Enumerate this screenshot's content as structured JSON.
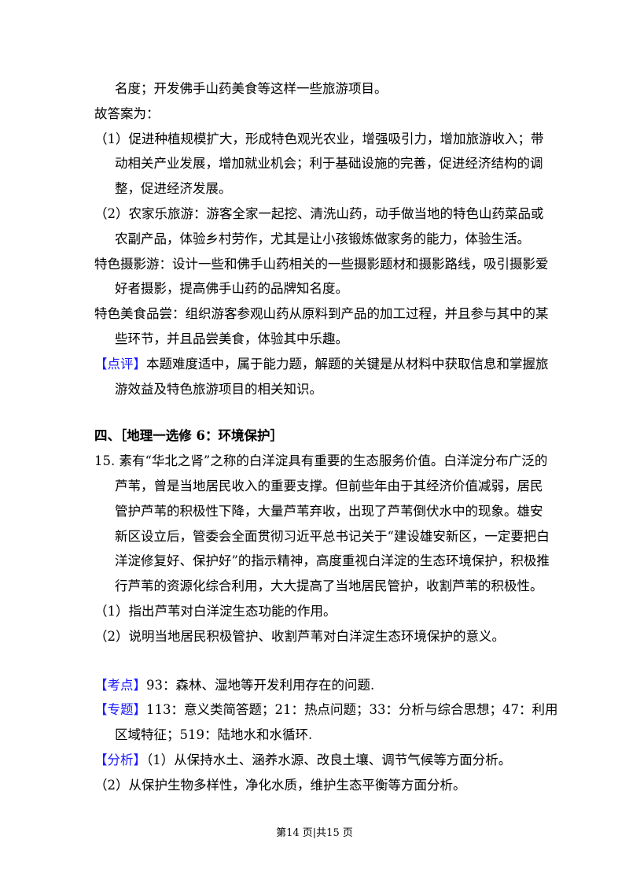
{
  "lines_top": [
    "名度；开发佛手山药美食等这样一些旅游项目。"
  ],
  "answer_intro": "故答案为：",
  "answer_1": [
    "（1）促进种植规模扩大，形成特色观光农业，增强吸引力，增加旅游收入；带",
    "动相关产业发展，增加就业机会；利于基础设施的完善，促进经济结构的调",
    "整，促进经济发展。"
  ],
  "answer_2": [
    "（2）农家乐旅游：游客全家一起挖、清洗山药，动手做当地的特色山药菜品或",
    "农副产品，体验乡村劳作，尤其是让小孩锻炼做家务的能力，体验生活。"
  ],
  "answer_3": [
    "特色摄影游：设计一些和佛手山药相关的一些摄影题材和摄影路线，吸引摄影爱",
    "好者摄影，提高佛手山药的品牌知名度。"
  ],
  "answer_4": [
    "特色美食品尝：组织游客参观山药从原料到产品的加工过程，并且参与其中的某",
    "些环节，并且品尝美食，体验其中乐趣。"
  ],
  "comment": {
    "label": "【点评】",
    "lines": [
      "本题难度适中，属于能力题，解题的关键是从材料中获取信息和掌握旅",
      "游效益及特色旅游项目的相关知识。"
    ]
  },
  "section_heading": "四、［地理一选修 6：环境保护］",
  "question": {
    "lines": [
      "15. 素有“华北之肾”之称的白洋淀具有重要的生态服务价值。白洋淀分布广泛的",
      "芦苇，曾是当地居民收入的重要支撑。但前些年由于其经济价值减弱，居民",
      "管护芦苇的积极性下降，大量芦苇弃收，出现了芦苇倒伏水中的现象。雄安",
      "新区设立后，管委会全面贯彻习近平总书记关于“建设雄安新区，一定要把白",
      "洋淀修复好、保护好”的指示精神，高度重视白洋淀的生态环境保护，积极推",
      "行芦苇的资源化综合利用，大大提高了当地居民管护，收割芦苇的积极性。"
    ],
    "sub": [
      "（1）指出芦苇对白洋淀生态功能的作用。",
      "（2）说明当地居民积极管护、收割芦苇对白洋淀生态环境保护的意义。"
    ]
  },
  "kaodian": {
    "label": "【考点】",
    "text": "93：森林、湿地等开发利用存在的问题."
  },
  "zhuanti": {
    "label": "【专题】",
    "lines": [
      "113：意义类简答题；21：热点问题；33：分析与综合思想；47：利用",
      "区域特征；519：陆地水和水循环."
    ]
  },
  "fenxi": {
    "label": "【分析】",
    "lines": [
      "（1）从保持水土、涵养水源、改良土壤、调节气候等方面分析。",
      "（2）从保护生物多样性，净化水质，维护生态平衡等方面分析。"
    ]
  },
  "footer": "第14 页|共15 页",
  "colors": {
    "label": "#1a1aff",
    "text": "#000000"
  }
}
